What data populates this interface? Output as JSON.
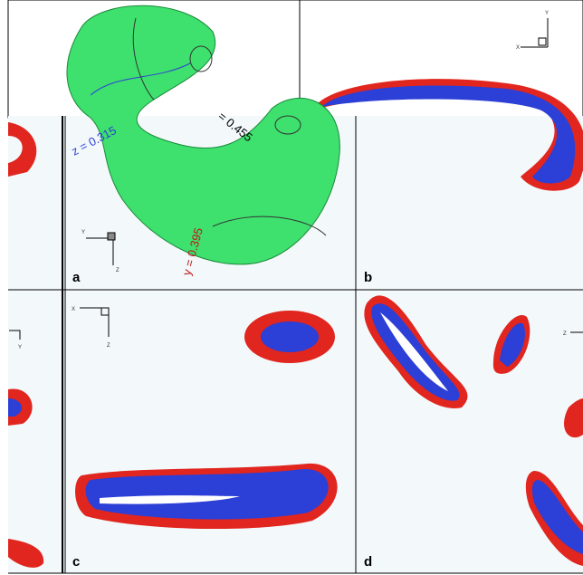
{
  "annotations": {
    "z": "z = 0.315",
    "x": "= 0.455",
    "y": "y = 0.395"
  },
  "panels": {
    "a": "a",
    "b": "b",
    "c": "c",
    "d": "d"
  },
  "axes": {
    "X": "X",
    "Y": "Y",
    "Z": "Z"
  }
}
